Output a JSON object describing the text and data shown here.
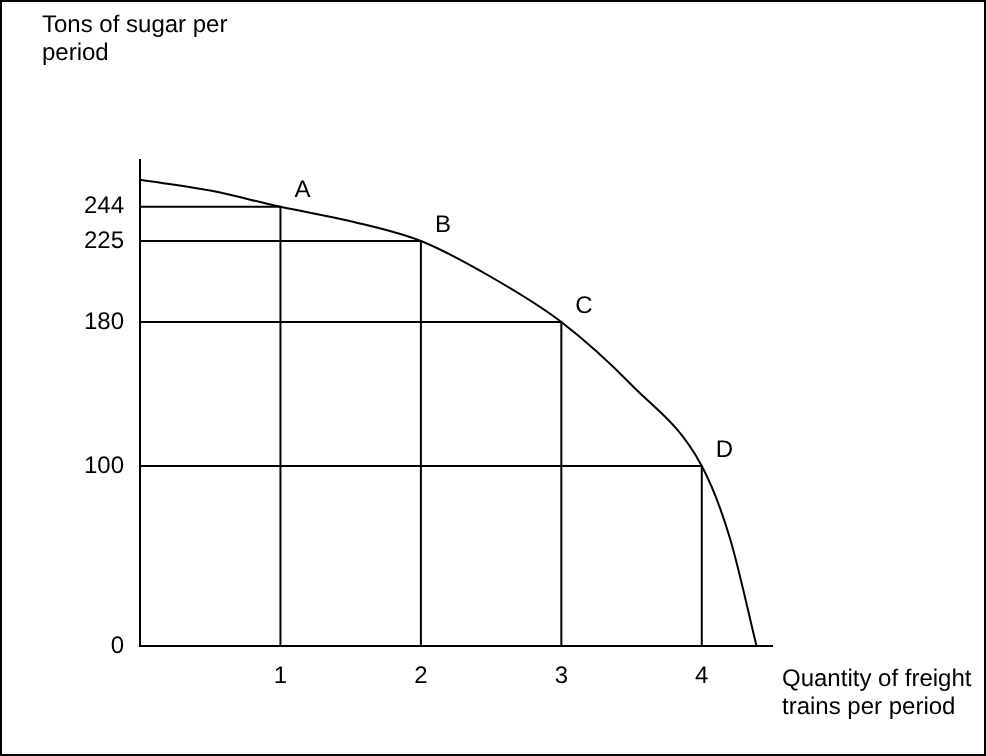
{
  "chart_data": {
    "type": "line",
    "xlabel": "Quantity of freight trains per period",
    "ylabel": "Tons of sugar per period",
    "x": [
      0,
      0.5,
      1,
      1.5,
      2,
      2.5,
      3,
      3.5,
      4,
      4.2,
      4.39
    ],
    "series": [
      {
        "color": "#000000",
        "values": [
          259,
          253,
          244,
          236,
          225,
          205,
          180,
          145,
          100,
          60,
          0
        ]
      },
      {
        "color": "#000000",
        "x": [
          0,
          1,
          1
        ],
        "values": [
          244,
          244,
          0
        ]
      },
      {
        "color": "#000000",
        "x": [
          0,
          2,
          2
        ],
        "values": [
          225,
          225,
          0
        ]
      },
      {
        "color": "#000000",
        "x": [
          0,
          3,
          3
        ],
        "values": [
          180,
          180,
          0
        ]
      },
      {
        "color": "#000000",
        "x": [
          0,
          4,
          4
        ],
        "values": [
          100,
          100,
          0
        ]
      }
    ],
    "xlim": [
      0,
      4.5
    ],
    "xticks": [
      1,
      2,
      3,
      4
    ],
    "ylim": [
      0,
      270
    ],
    "yticks": [
      0,
      100,
      180,
      225,
      244
    ],
    "annotations": [
      {
        "text": "A",
        "x": 1,
        "y": 244
      },
      {
        "text": "B",
        "x": 2,
        "y": 225
      },
      {
        "text": "C",
        "x": 3,
        "y": 180
      },
      {
        "text": "D",
        "x": 4,
        "y": 100
      }
    ],
    "legend": false,
    "marker": "none",
    "line_style": "solid"
  }
}
